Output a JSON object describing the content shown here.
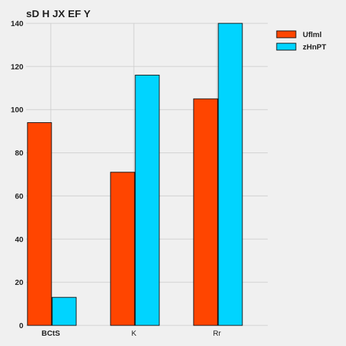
{
  "chart_data": {
    "type": "bar",
    "title": "sD H JX EF Y",
    "categories": [
      "BCtS",
      "K",
      "Rr"
    ],
    "series": [
      {
        "name": "Uflml",
        "color": "#ff4500",
        "values": [
          94,
          71,
          105
        ]
      },
      {
        "name": "zHnPT",
        "color": "#00d4ff",
        "values": [
          13,
          116,
          140
        ]
      }
    ],
    "ylim": [
      0,
      140
    ],
    "yticks": [
      0,
      20,
      40,
      60,
      80,
      100,
      120,
      140
    ],
    "grid": true,
    "legend_position": "top-right",
    "background": "#f0f0f0"
  }
}
